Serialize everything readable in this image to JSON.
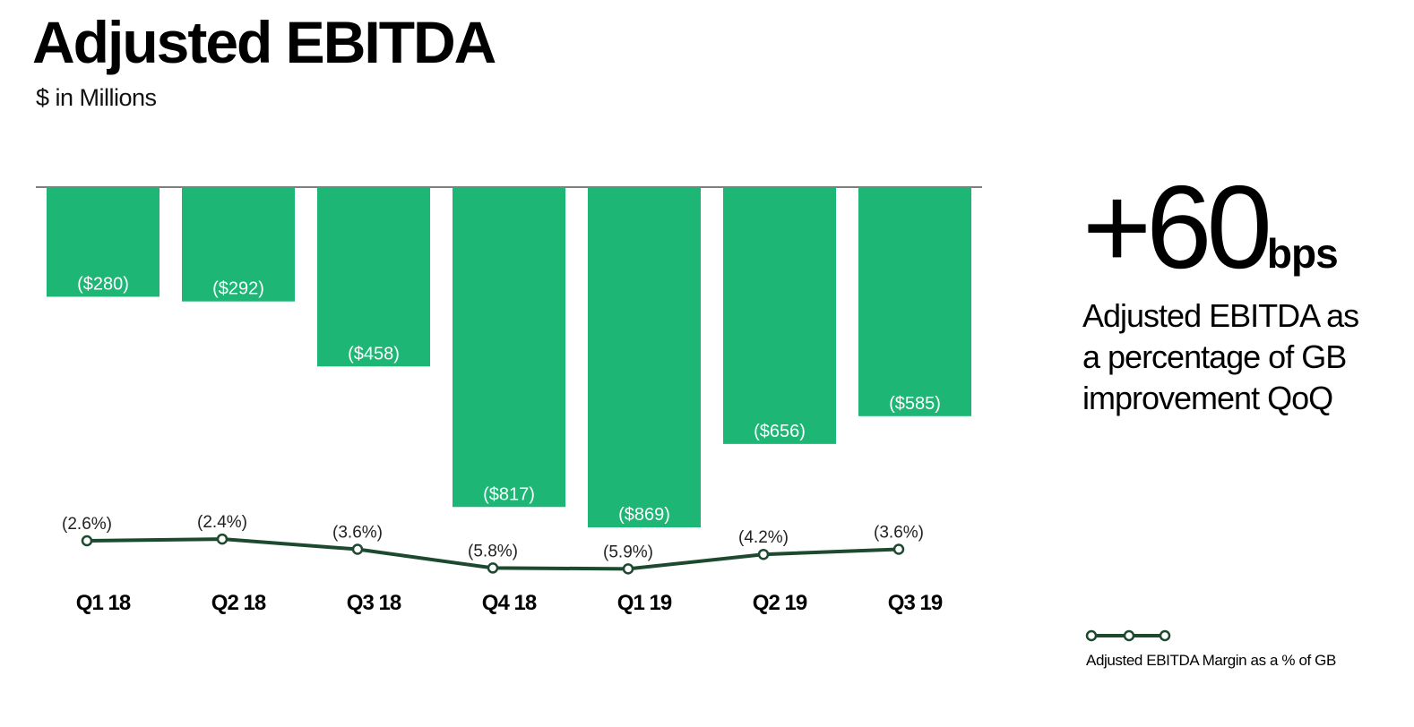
{
  "colors": {
    "bar": "#1db674",
    "line": "#1d4a2f",
    "axis": "#555555",
    "text": "#000000"
  },
  "chart_data": {
    "type": "bar",
    "title": "Adjusted EBITDA",
    "subtitle": "$ in Millions",
    "categories": [
      "Q1 18",
      "Q2 18",
      "Q3 18",
      "Q4 18",
      "Q1 19",
      "Q2 19",
      "Q3 19"
    ],
    "series": [
      {
        "name": "",
        "type": "bar",
        "values": [
          -280,
          -292,
          -458,
          -817,
          -869,
          -656,
          -585
        ],
        "labels": [
          "($280)",
          "($292)",
          "($458)",
          "($817)",
          "($869)",
          "($656)",
          "($585)"
        ]
      },
      {
        "name": "Adjusted EBITDA Margin as a % of GB",
        "type": "line",
        "values": [
          -2.6,
          -2.4,
          -3.6,
          -5.8,
          -5.9,
          -4.2,
          -3.6
        ],
        "labels": [
          "(2.6%)",
          "(2.4%)",
          "(3.6%)",
          "(5.8%)",
          "(5.9%)",
          "(4.2%)",
          "(3.6%)"
        ]
      }
    ],
    "ylim": [
      -869,
      0
    ],
    "grid": false,
    "legend": "bottom-right"
  },
  "callout": {
    "value": "+60",
    "unit": "bps",
    "text": "Adjusted EBITDA as\na percentage of GB\nimprovement QoQ"
  },
  "legend": {
    "label": "Adjusted EBITDA Margin as a % of GB"
  }
}
